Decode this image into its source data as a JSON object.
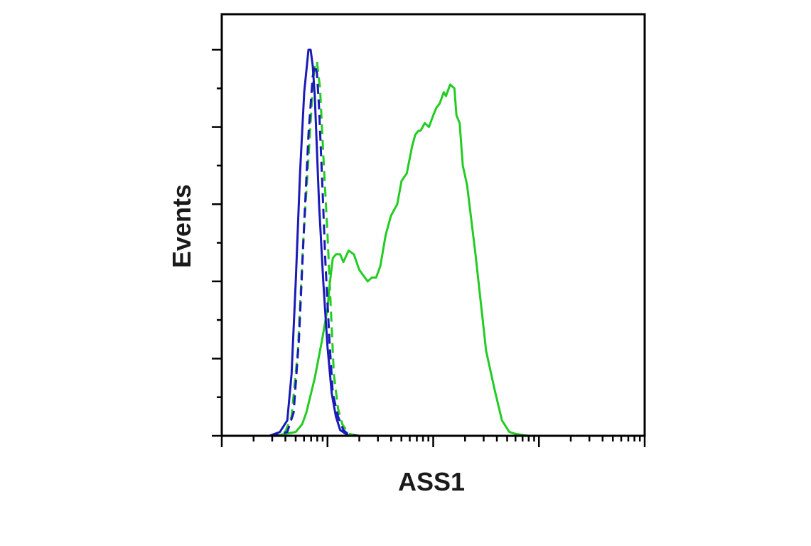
{
  "chart_data": {
    "type": "line",
    "title": "",
    "xlabel": "ASS1",
    "ylabel": "Events",
    "x_scale": "log",
    "x_decades": [
      1,
      5
    ],
    "xlim": [
      1.0,
      5.0
    ],
    "ylim": [
      0,
      100
    ],
    "grid": false,
    "legend": "none",
    "tick_labels": false,
    "series": [
      {
        "color": "#22cc22",
        "dash": "solid",
        "x": [
          1.0,
          1.5,
          1.7,
          1.76,
          1.8,
          1.88,
          1.95,
          2.0,
          2.02,
          2.05,
          2.08,
          2.12,
          2.15,
          2.2,
          2.25,
          2.3,
          2.38,
          2.42,
          2.46,
          2.5,
          2.55,
          2.6,
          2.66,
          2.7,
          2.75,
          2.8,
          2.83,
          2.86,
          2.88,
          2.92,
          2.96,
          3.0,
          3.03,
          3.06,
          3.1,
          3.12,
          3.16,
          3.2,
          3.22,
          3.25,
          3.28,
          3.32,
          3.4,
          3.5,
          3.58,
          3.65,
          3.72,
          3.78,
          3.9,
          4.0,
          4.5,
          5.0
        ],
        "y": [
          0,
          0,
          1,
          3,
          6,
          15,
          25,
          33,
          39,
          46,
          47,
          47,
          45,
          48,
          47,
          43,
          40,
          41,
          41,
          44,
          52,
          57,
          60,
          66,
          68,
          75,
          78,
          79,
          79,
          81,
          80,
          83,
          85,
          86,
          89,
          88,
          91,
          90,
          83,
          81,
          70,
          65,
          47,
          22,
          12,
          4,
          1,
          0.5,
          0,
          0,
          0,
          0
        ]
      },
      {
        "color": "#22cc22",
        "dash": "dashed",
        "x": [
          1.0,
          1.5,
          1.6,
          1.66,
          1.72,
          1.77,
          1.82,
          1.86,
          1.88,
          1.9,
          1.93,
          1.96,
          2.0,
          2.03,
          2.06,
          2.1,
          2.14,
          2.2,
          2.3,
          2.5,
          3.0,
          4.0,
          5.0
        ],
        "y": [
          0,
          0,
          1,
          5,
          22,
          50,
          72,
          90,
          96,
          97,
          90,
          73,
          52,
          34,
          16,
          7,
          3,
          0.5,
          0,
          0,
          0,
          0,
          0
        ]
      },
      {
        "color": "#1a1ab8",
        "dash": "dashed",
        "x": [
          1.0,
          1.5,
          1.62,
          1.68,
          1.73,
          1.78,
          1.82,
          1.86,
          1.88,
          1.9,
          1.92,
          1.95,
          1.98,
          2.02,
          2.05,
          2.1,
          2.15,
          2.2,
          2.3,
          2.5,
          3.0,
          4.0,
          5.0
        ],
        "y": [
          0,
          0,
          1,
          6,
          25,
          55,
          78,
          93,
          96,
          94,
          85,
          66,
          45,
          24,
          11,
          5,
          1.5,
          0.3,
          0,
          0,
          0,
          0,
          0
        ]
      },
      {
        "color": "#1a1ab8",
        "dash": "solid",
        "x": [
          1.0,
          1.45,
          1.55,
          1.62,
          1.66,
          1.7,
          1.74,
          1.78,
          1.82,
          1.84,
          1.86,
          1.88,
          1.9,
          1.92,
          1.96,
          2.0,
          2.04,
          2.08,
          2.12,
          2.2,
          2.3,
          2.5,
          3.0,
          4.0,
          5.0
        ],
        "y": [
          0,
          0,
          1,
          4,
          16,
          40,
          68,
          89,
          100,
          100,
          96,
          88,
          74,
          60,
          40,
          23,
          11,
          5,
          1.5,
          0,
          0,
          0,
          0,
          0,
          0
        ]
      }
    ]
  }
}
